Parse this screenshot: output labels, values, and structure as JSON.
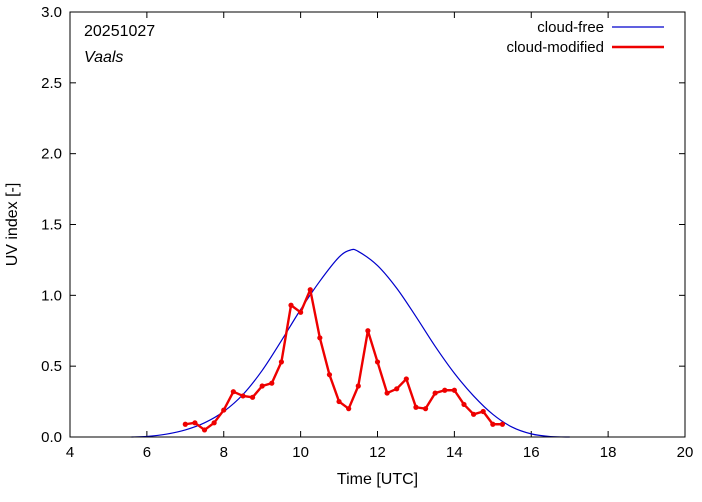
{
  "chart_data": {
    "type": "line",
    "date_label": "20251027",
    "location_label": "Vaals",
    "xlabel": "Time  [UTC]",
    "ylabel": "UV index  [-]",
    "xlim": [
      4,
      20
    ],
    "ylim": [
      0,
      3.0
    ],
    "xticks": [
      4,
      6,
      8,
      10,
      12,
      14,
      16,
      18,
      20
    ],
    "yticks": [
      0.0,
      0.5,
      1.0,
      1.5,
      2.0,
      2.5,
      3.0
    ],
    "ytick_labels": [
      "0.0",
      "0.5",
      "1.0",
      "1.5",
      "2.0",
      "2.5",
      "3.0"
    ],
    "grid": false,
    "legend_position": "top-right",
    "series": [
      {
        "name": "cloud-free",
        "color": "#0000cc",
        "curve": "smooth",
        "x": [
          5.6,
          6.0,
          6.5,
          7.0,
          7.5,
          8.0,
          8.5,
          9.0,
          9.5,
          10.0,
          10.5,
          11.0,
          11.3,
          11.5,
          12.0,
          12.5,
          13.0,
          13.5,
          14.0,
          14.5,
          15.0,
          15.5,
          16.0,
          16.5,
          17.0
        ],
        "y": [
          0.0,
          0.004,
          0.02,
          0.05,
          0.1,
          0.18,
          0.3,
          0.47,
          0.68,
          0.9,
          1.1,
          1.27,
          1.32,
          1.31,
          1.21,
          1.05,
          0.85,
          0.64,
          0.45,
          0.29,
          0.16,
          0.07,
          0.022,
          0.003,
          0.0
        ]
      },
      {
        "name": "cloud-modified",
        "color": "#ee0000",
        "x": [
          7.0,
          7.25,
          7.5,
          7.75,
          8.0,
          8.25,
          8.5,
          8.75,
          9.0,
          9.25,
          9.5,
          9.75,
          10.0,
          10.25,
          10.5,
          10.75,
          11.0,
          11.25,
          11.5,
          11.75,
          12.0,
          12.25,
          12.5,
          12.75,
          13.0,
          13.25,
          13.5,
          13.75,
          14.0,
          14.25,
          14.5,
          14.75,
          15.0,
          15.25
        ],
        "y": [
          0.09,
          0.1,
          0.05,
          0.1,
          0.19,
          0.32,
          0.29,
          0.28,
          0.36,
          0.38,
          0.53,
          0.93,
          0.88,
          1.04,
          0.7,
          0.44,
          0.25,
          0.2,
          0.36,
          0.75,
          0.53,
          0.31,
          0.34,
          0.41,
          0.21,
          0.2,
          0.31,
          0.33,
          0.33,
          0.23,
          0.16,
          0.18,
          0.09,
          0.09
        ]
      }
    ]
  }
}
